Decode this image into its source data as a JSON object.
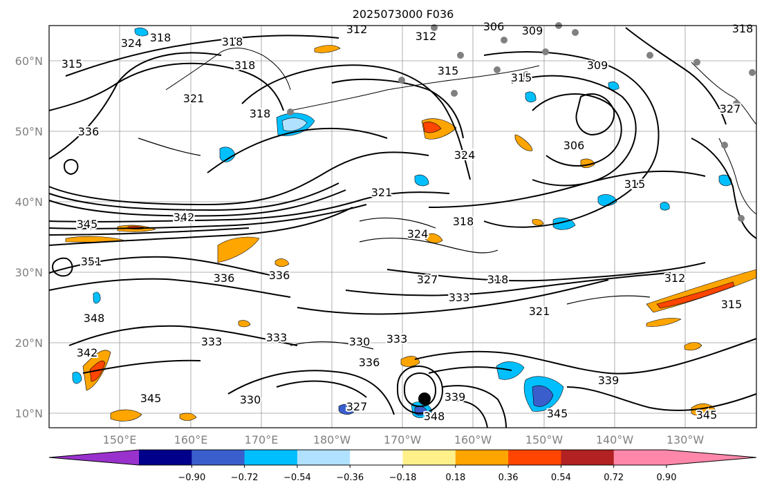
{
  "title": "2025073000 F036",
  "map": {
    "lat_labels": [
      "60°N",
      "50°N",
      "40°N",
      "30°N",
      "20°N",
      "10°N"
    ],
    "lon_labels": [
      "150°E",
      "160°E",
      "170°E",
      "180°W",
      "170°W",
      "160°W",
      "150°W",
      "140°W",
      "130°W"
    ]
  },
  "contour_labels": [
    "312",
    "306",
    "309",
    "318",
    "315",
    "324",
    "318",
    "318",
    "312",
    "315",
    "309",
    "315",
    "318",
    "321",
    "327",
    "336",
    "318",
    "324",
    "306",
    "315",
    "321",
    "324",
    "318",
    "342",
    "345",
    "351",
    "336",
    "336",
    "327",
    "318",
    "312",
    "333",
    "321",
    "315",
    "348",
    "342",
    "333",
    "333",
    "330",
    "333",
    "336",
    "330",
    "327",
    "339",
    "345",
    "339",
    "345",
    "348",
    "345"
  ],
  "colorbar": {
    "ticks": [
      "−0.90",
      "−0.72",
      "−0.54",
      "−0.36",
      "−0.18",
      "0.18",
      "0.36",
      "0.54",
      "0.72",
      "0.90"
    ],
    "colors": [
      "#9932cc",
      "#9932cc",
      "#00008b",
      "#3a5fcd",
      "#00bfff",
      "#b0e2ff",
      "#ffffff",
      "#fff08a",
      "#ffa500",
      "#ff4500",
      "#b22222",
      "#ff88aa",
      "#ff88aa"
    ]
  }
}
